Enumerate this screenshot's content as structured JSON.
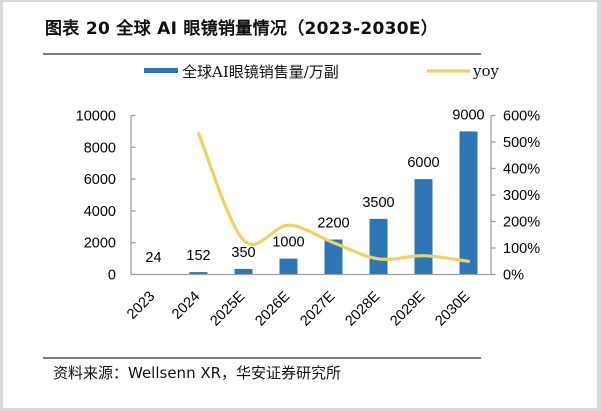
{
  "header": {
    "title": "图表 20 全球 AI 眼镜销量情况（2023-2030E）"
  },
  "footer": {
    "source": "资料来源：Wellsenn XR，华安证券研究所"
  },
  "chart_data": {
    "type": "bar",
    "title": "全球 AI 眼镜销量情况（2023-2030E）",
    "categories": [
      "2023",
      "2024",
      "2025E",
      "2026E",
      "2027E",
      "2028E",
      "2029E",
      "2030E"
    ],
    "series": [
      {
        "name": "全球AI眼镜销售量/万副",
        "type": "bar",
        "axis": "left",
        "color": "#2e75b6",
        "values": [
          24,
          152,
          350,
          1000,
          2200,
          3500,
          6000,
          9000
        ],
        "data_labels": true
      },
      {
        "name": "yoy",
        "type": "line",
        "axis": "right",
        "color": "#f2d163",
        "smooth": true,
        "unit": "%",
        "values": [
          null,
          533,
          130,
          186,
          120,
          59,
          71,
          50
        ]
      }
    ],
    "y_left": {
      "min": 0,
      "max": 10000,
      "ticks": [
        0,
        2000,
        4000,
        6000,
        8000,
        10000
      ],
      "tick_labels": [
        "0",
        "2000",
        "4000",
        "6000",
        "8000",
        "10000"
      ]
    },
    "y_right": {
      "min": 0,
      "max": 600,
      "ticks": [
        0,
        100,
        200,
        300,
        400,
        500,
        600
      ],
      "tick_labels": [
        "0%",
        "100%",
        "200%",
        "300%",
        "400%",
        "500%",
        "600%"
      ]
    },
    "xlabel": "",
    "ylabel": "",
    "grid": false,
    "legend": "top"
  }
}
